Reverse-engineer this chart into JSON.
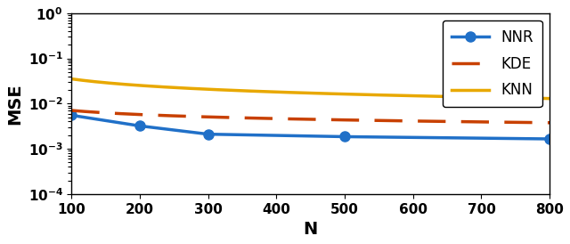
{
  "N_nnr": [
    100,
    200,
    300,
    500,
    800
  ],
  "MSE_nnr": [
    0.0055,
    0.0032,
    0.0021,
    0.00185,
    0.00165
  ],
  "MSE_kde_func": {
    "a": 0.028,
    "b": -0.3
  },
  "MSE_knn_func": {
    "a": 0.32,
    "b": -0.48
  },
  "NNR_color": "#2070C8",
  "KDE_color": "#C84000",
  "KNN_color": "#E8A800",
  "xlabel": "N",
  "ylabel": "MSE",
  "xlim": [
    100,
    800
  ],
  "xticks": [
    100,
    200,
    300,
    400,
    500,
    600,
    700,
    800
  ],
  "axis_fontsize": 14,
  "legend_fontsize": 12,
  "linewidth": 2.5,
  "markersize": 8
}
